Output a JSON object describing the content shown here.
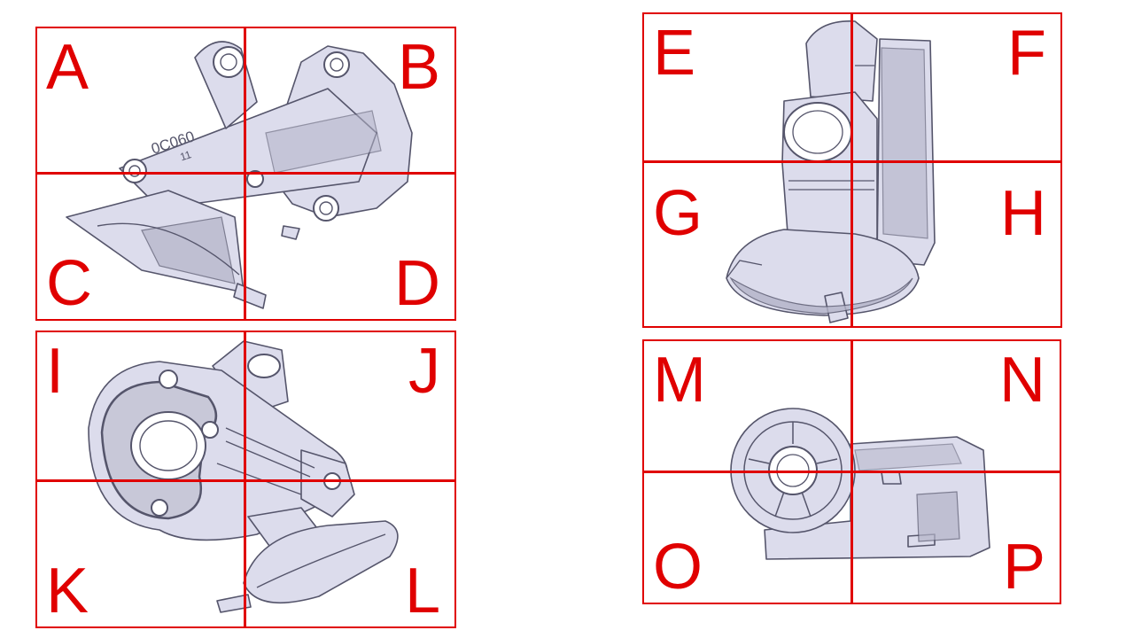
{
  "colors": {
    "grid": "#e00000",
    "part_fill": "#dcdcec",
    "part_line": "#55556b",
    "part_shade": "#b4b4c8"
  },
  "panels": {
    "top_left": {
      "view_name": "casting-view-top-left",
      "cells": [
        "A",
        "B",
        "C",
        "D"
      ],
      "marking": {
        "line1": "0C060",
        "line2": "11"
      }
    },
    "top_right": {
      "view_name": "casting-view-top-right",
      "cells": [
        "E",
        "F",
        "G",
        "H"
      ]
    },
    "bottom_left": {
      "view_name": "casting-view-bottom-left",
      "cells": [
        "I",
        "J",
        "K",
        "L"
      ]
    },
    "bottom_right": {
      "view_name": "casting-view-bottom-right",
      "cells": [
        "M",
        "N",
        "O",
        "P"
      ]
    }
  }
}
